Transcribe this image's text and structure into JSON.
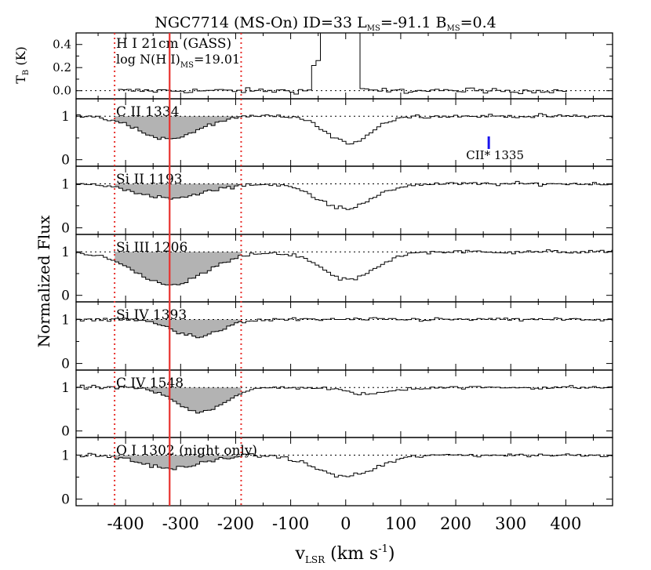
{
  "chart_data": {
    "type": "line",
    "title": {
      "prefix": "NGC7714 (MS-On) ID=33 L",
      "l_sub": "MS",
      "l_value": "=-91.1 B",
      "b_sub": "MS",
      "b_value": "=0.4"
    },
    "xlabel": {
      "main": "v",
      "sub": "LSR",
      "unit": " (km s",
      "exp": "-1",
      "close": ")"
    },
    "ylabel_top": {
      "main": "T",
      "sub": "B",
      "unit": " (K)"
    },
    "ylabel_main": "Normalized Flux",
    "xlim": [
      -490,
      485
    ],
    "x_ticks": [
      -400,
      -300,
      -200,
      -100,
      0,
      100,
      200,
      300,
      400
    ],
    "x_tick_labels": [
      "-400",
      "-300",
      "-200",
      "-100",
      "0",
      "100",
      "200",
      "300",
      "400"
    ],
    "velocity_markers": {
      "solid_red": -320,
      "dotted_red": [
        -420,
        -190
      ]
    },
    "hi_panel": {
      "label": "H I 21cm (GASS)",
      "column_prefix": "log N(H I)",
      "column_sub": "MS",
      "column_value": "=19.01",
      "ylim": [
        -0.07,
        0.5
      ],
      "y_ticks": [
        0.0,
        0.2,
        0.4
      ],
      "y_tick_labels": [
        "0.0",
        "0.2",
        "0.4"
      ],
      "data_range": [
        -410,
        400
      ]
    },
    "panels": [
      {
        "label": "C II 1334",
        "ylim": [
          -0.15,
          1.4
        ],
        "shade": [
          -420,
          -190
        ],
        "troughs": [
          {
            "center": 5,
            "width": 40,
            "depth": 0.62
          },
          {
            "center": -322,
            "width": 55,
            "depth": 0.52
          }
        ],
        "annotation": {
          "text": "CII* 1335",
          "x": 260
        }
      },
      {
        "label": "Si II 1193",
        "ylim": [
          -0.15,
          1.4
        ],
        "shade": [
          -420,
          -190
        ],
        "troughs": [
          {
            "center": 0,
            "width": 50,
            "depth": 0.55
          },
          {
            "center": -318,
            "width": 60,
            "depth": 0.33
          }
        ]
      },
      {
        "label": "Si III 1206",
        "ylim": [
          -0.15,
          1.4
        ],
        "shade": [
          -420,
          -190
        ],
        "troughs": [
          {
            "center": 5,
            "width": 48,
            "depth": 0.64
          },
          {
            "center": -318,
            "width": 65,
            "depth": 0.75
          }
        ]
      },
      {
        "label": "Si IV 1393",
        "ylim": [
          -0.15,
          1.4
        ],
        "shade": [
          -420,
          -190
        ],
        "troughs": [
          {
            "center": -270,
            "width": 45,
            "depth": 0.38
          }
        ]
      },
      {
        "label": "C IV 1548",
        "ylim": [
          -0.15,
          1.4
        ],
        "shade": [
          -420,
          -190
        ],
        "troughs": [
          {
            "center": 40,
            "width": 40,
            "depth": 0.15
          },
          {
            "center": -265,
            "width": 45,
            "depth": 0.55
          }
        ]
      },
      {
        "label": "O I 1302 (night only)",
        "ylim": [
          -0.15,
          1.4
        ],
        "shade": [
          -420,
          -190
        ],
        "troughs": [
          {
            "center": 0,
            "width": 55,
            "depth": 0.48
          },
          {
            "center": -315,
            "width": 55,
            "depth": 0.3
          }
        ]
      }
    ],
    "flux_y_ticks": [
      0,
      1
    ],
    "flux_y_tick_labels": [
      "0",
      "1"
    ],
    "reference_line": 1.0,
    "colors": {
      "spectrum": "#000000",
      "shade": "#b3b3b3",
      "marker": "#e8322e",
      "annotation": "#1a14ee"
    }
  }
}
